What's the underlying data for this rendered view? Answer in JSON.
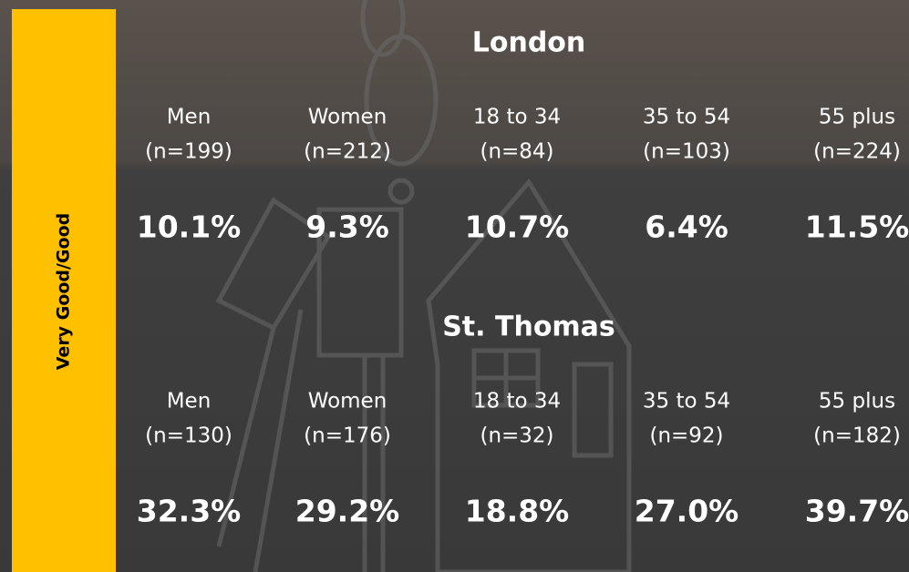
{
  "side_label": "Very Good/Good",
  "sections": [
    {
      "title": "London",
      "groups": [
        {
          "label": "Men",
          "n": "(n=199)",
          "value": "10.1%"
        },
        {
          "label": "Women",
          "n": "(n=212)",
          "value": "9.3%"
        },
        {
          "label": "18 to 34",
          "n": "(n=84)",
          "value": "10.7%"
        },
        {
          "label": "35 to 54",
          "n": "(n=103)",
          "value": "6.4%"
        },
        {
          "label": "55 plus",
          "n": "(n=224)",
          "value": "11.5%"
        }
      ]
    },
    {
      "title": "St. Thomas",
      "groups": [
        {
          "label": "Men",
          "n": "(n=130)",
          "value": "32.3%"
        },
        {
          "label": "Women",
          "n": "(n=176)",
          "value": "29.2%"
        },
        {
          "label": "18 to 34",
          "n": "(n=32)",
          "value": "18.8%"
        },
        {
          "label": "35 to 54",
          "n": "(n=92)",
          "value": "27.0%"
        },
        {
          "label": "55 plus",
          "n": "(n=182)",
          "value": "39.7%"
        }
      ]
    }
  ]
}
